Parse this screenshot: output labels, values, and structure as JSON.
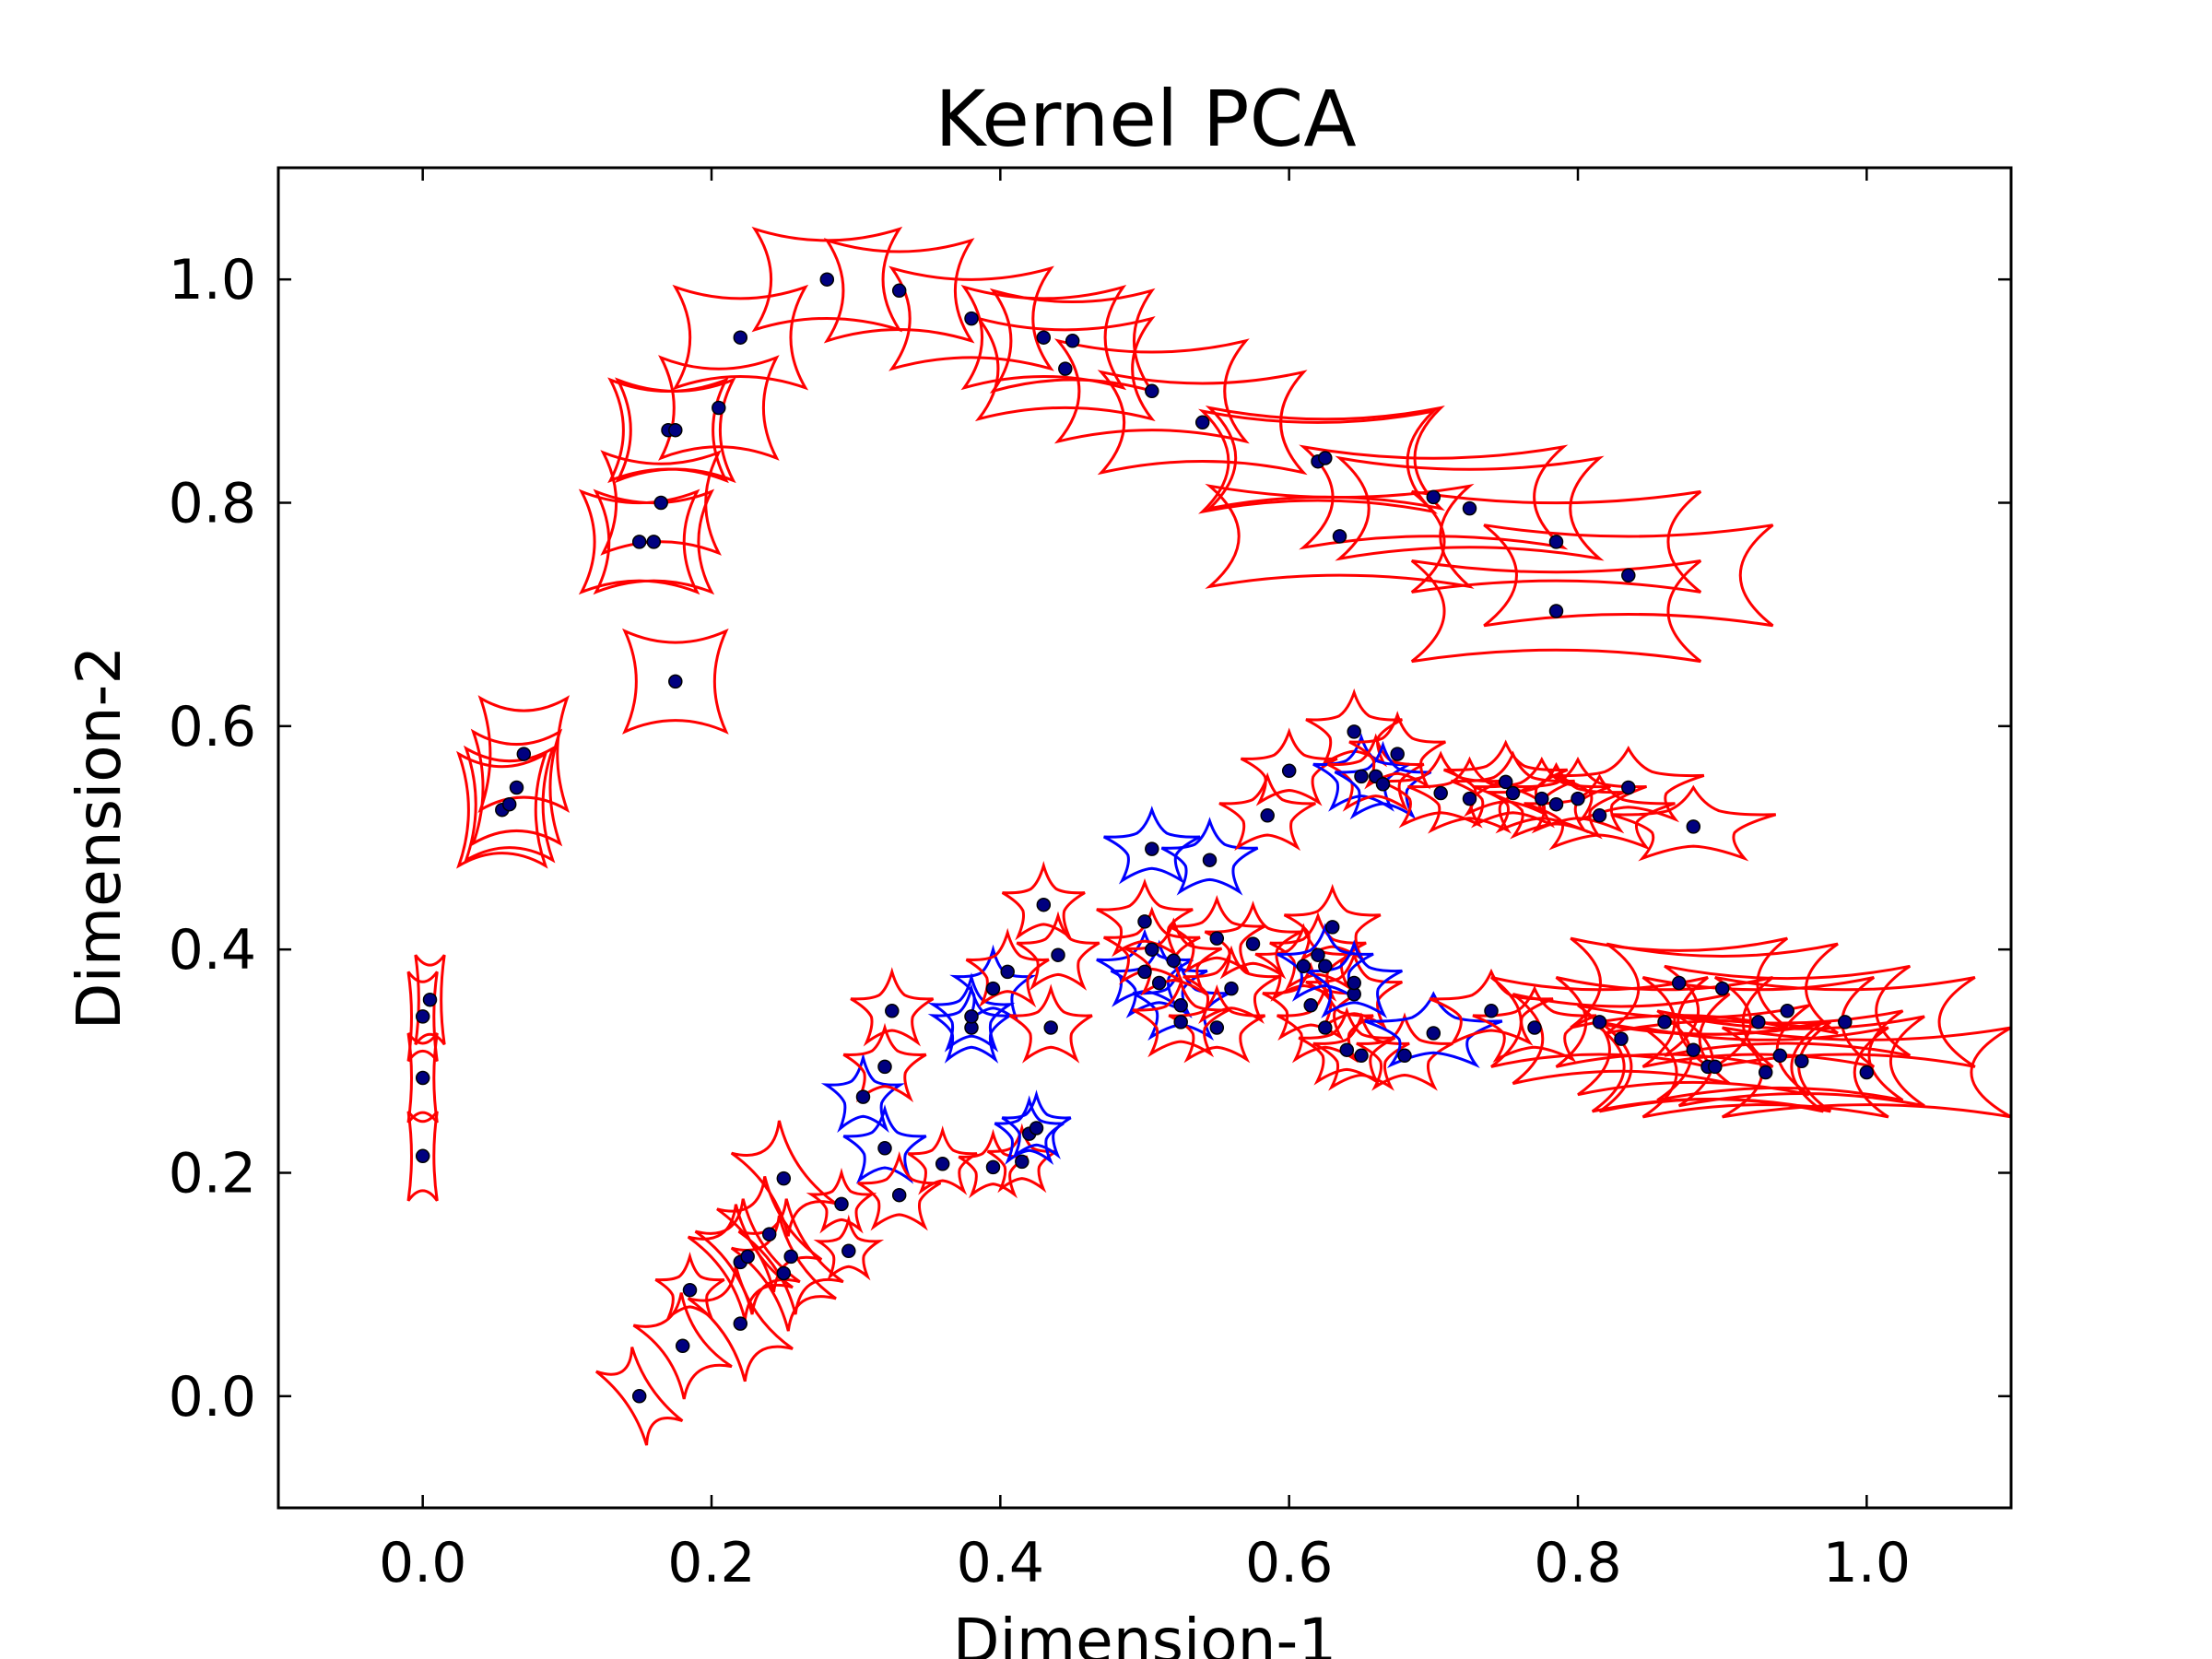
{
  "chart_data": {
    "type": "scatter",
    "title": "Kernel PCA",
    "xlabel": "Dimension-1",
    "ylabel": "Dimension-2",
    "xlim": [
      -0.1,
      1.1
    ],
    "ylim": [
      -0.1,
      1.1
    ],
    "xticks": [
      0.0,
      0.2,
      0.4,
      0.6,
      0.8,
      1.0
    ],
    "yticks": [
      0.0,
      0.2,
      0.4,
      0.6,
      0.8,
      1.0
    ],
    "xtick_labels": [
      "0.0",
      "0.2",
      "0.4",
      "0.6",
      "0.8",
      "1.0"
    ],
    "ytick_labels": [
      "0.0",
      "0.2",
      "0.4",
      "0.6",
      "0.8",
      "1.0"
    ],
    "grid": false,
    "legend": "none",
    "point_color": "#000080",
    "glyph_colors": {
      "red": "#ff0000",
      "blue": "#0000ff"
    },
    "points": [
      [
        0.0,
        0.215,
        "bar",
        0.01,
        0.04
      ],
      [
        0.0,
        0.285,
        "bar",
        0.01,
        0.04
      ],
      [
        0.0,
        0.34,
        "bar",
        0.01,
        0.04
      ],
      [
        0.005,
        0.355,
        "bar",
        0.01,
        0.04
      ],
      [
        0.055,
        0.525,
        "bar",
        0.03,
        0.05
      ],
      [
        0.06,
        0.53,
        "bar",
        0.03,
        0.05
      ],
      [
        0.065,
        0.545,
        "bar",
        0.03,
        0.05
      ],
      [
        0.07,
        0.575,
        "bar",
        0.03,
        0.05
      ],
      [
        0.175,
        0.64,
        "bar",
        0.035,
        0.045
      ],
      [
        0.15,
        0.765,
        "bar",
        0.04,
        0.045
      ],
      [
        0.16,
        0.765,
        "bar",
        0.04,
        0.045
      ],
      [
        0.165,
        0.8,
        "bar",
        0.04,
        0.045
      ],
      [
        0.17,
        0.865,
        "bar",
        0.04,
        0.045
      ],
      [
        0.175,
        0.865,
        "bar",
        0.04,
        0.045
      ],
      [
        0.205,
        0.885,
        "bar",
        0.04,
        0.045
      ],
      [
        0.22,
        0.948,
        "bar",
        0.045,
        0.045
      ],
      [
        0.28,
        1.0,
        "bar",
        0.05,
        0.045
      ],
      [
        0.33,
        0.99,
        "bar",
        0.05,
        0.045
      ],
      [
        0.38,
        0.965,
        "bar",
        0.055,
        0.045
      ],
      [
        0.43,
        0.948,
        "bar",
        0.055,
        0.045
      ],
      [
        0.45,
        0.945,
        "bar",
        0.055,
        0.045
      ],
      [
        0.445,
        0.92,
        "bar",
        0.06,
        0.045
      ],
      [
        0.505,
        0.9,
        "bar",
        0.065,
        0.045
      ],
      [
        0.54,
        0.872,
        "bar",
        0.07,
        0.045
      ],
      [
        0.62,
        0.837,
        "bar",
        0.08,
        0.045
      ],
      [
        0.625,
        0.84,
        "bar",
        0.08,
        0.045
      ],
      [
        0.635,
        0.77,
        "bar",
        0.09,
        0.045
      ],
      [
        0.7,
        0.805,
        "bar",
        0.09,
        0.045
      ],
      [
        0.725,
        0.795,
        "bar",
        0.09,
        0.045
      ],
      [
        0.785,
        0.765,
        "bar",
        0.1,
        0.045
      ],
      [
        0.785,
        0.703,
        "bar",
        0.1,
        0.045
      ],
      [
        0.835,
        0.735,
        "bar",
        0.1,
        0.045
      ],
      [
        0.15,
        0.0,
        "wedge",
        0.015,
        0.04
      ],
      [
        0.18,
        0.045,
        "wedge",
        0.02,
        0.04
      ],
      [
        0.185,
        0.095,
        "star",
        0.025,
        0.03
      ],
      [
        0.22,
        0.065,
        "wedge",
        0.02,
        0.045
      ],
      [
        0.22,
        0.12,
        "wedge",
        0.02,
        0.045
      ],
      [
        0.225,
        0.125,
        "wedge",
        0.02,
        0.045
      ],
      [
        0.24,
        0.145,
        "wedge",
        0.02,
        0.045
      ],
      [
        0.25,
        0.11,
        "wedge",
        0.02,
        0.045
      ],
      [
        0.255,
        0.125,
        "wedge",
        0.02,
        0.045
      ],
      [
        0.25,
        0.195,
        "wedge",
        0.02,
        0.045
      ],
      [
        0.29,
        0.172,
        "star",
        0.022,
        0.028
      ],
      [
        0.295,
        0.13,
        "star",
        0.022,
        0.028
      ],
      [
        0.305,
        0.268,
        "blue-star",
        0.027,
        0.035
      ],
      [
        0.32,
        0.222,
        "blue-star",
        0.03,
        0.035
      ],
      [
        0.32,
        0.295,
        "star",
        0.03,
        0.035
      ],
      [
        0.325,
        0.345,
        "star",
        0.03,
        0.035
      ],
      [
        0.33,
        0.18,
        "star",
        0.03,
        0.035
      ],
      [
        0.36,
        0.208,
        "star",
        0.025,
        0.03
      ],
      [
        0.395,
        0.205,
        "star",
        0.025,
        0.03
      ],
      [
        0.415,
        0.21,
        "star",
        0.025,
        0.03
      ],
      [
        0.42,
        0.235,
        "blue-star",
        0.025,
        0.03
      ],
      [
        0.425,
        0.24,
        "blue-star",
        0.025,
        0.03
      ],
      [
        0.38,
        0.33,
        "blue-star",
        0.028,
        0.035
      ],
      [
        0.38,
        0.34,
        "blue-star",
        0.028,
        0.035
      ],
      [
        0.395,
        0.365,
        "blue-star",
        0.028,
        0.035
      ],
      [
        0.405,
        0.38,
        "star",
        0.03,
        0.035
      ],
      [
        0.43,
        0.44,
        "star",
        0.03,
        0.035
      ],
      [
        0.44,
        0.395,
        "star",
        0.03,
        0.035
      ],
      [
        0.435,
        0.33,
        "star",
        0.03,
        0.035
      ],
      [
        0.505,
        0.49,
        "blue-star",
        0.035,
        0.035
      ],
      [
        0.545,
        0.48,
        "blue-star",
        0.035,
        0.035
      ],
      [
        0.5,
        0.38,
        "blue-star",
        0.035,
        0.035
      ],
      [
        0.51,
        0.37,
        "blue-star",
        0.035,
        0.035
      ],
      [
        0.525,
        0.35,
        "blue-star",
        0.035,
        0.035
      ],
      [
        0.5,
        0.425,
        "star",
        0.035,
        0.035
      ],
      [
        0.505,
        0.4,
        "star",
        0.035,
        0.035
      ],
      [
        0.52,
        0.39,
        "star",
        0.035,
        0.035
      ],
      [
        0.525,
        0.335,
        "star",
        0.035,
        0.035
      ],
      [
        0.55,
        0.33,
        "star",
        0.035,
        0.035
      ],
      [
        0.55,
        0.41,
        "star",
        0.035,
        0.035
      ],
      [
        0.56,
        0.365,
        "star",
        0.035,
        0.035
      ],
      [
        0.575,
        0.405,
        "star",
        0.035,
        0.035
      ],
      [
        0.585,
        0.52,
        "star",
        0.035,
        0.035
      ],
      [
        0.6,
        0.56,
        "star",
        0.035,
        0.035
      ],
      [
        0.61,
        0.385,
        "star",
        0.035,
        0.035
      ],
      [
        0.615,
        0.35,
        "star",
        0.035,
        0.035
      ],
      [
        0.62,
        0.395,
        "star",
        0.035,
        0.035
      ],
      [
        0.625,
        0.33,
        "star",
        0.035,
        0.035
      ],
      [
        0.63,
        0.42,
        "star",
        0.035,
        0.035
      ],
      [
        0.64,
        0.31,
        "star",
        0.035,
        0.035
      ],
      [
        0.645,
        0.36,
        "star",
        0.035,
        0.035
      ],
      [
        0.65,
        0.305,
        "star",
        0.035,
        0.035
      ],
      [
        0.645,
        0.595,
        "star",
        0.035,
        0.035
      ],
      [
        0.65,
        0.555,
        "blue-star",
        0.035,
        0.035
      ],
      [
        0.66,
        0.555,
        "star",
        0.035,
        0.035
      ],
      [
        0.665,
        0.548,
        "blue-star",
        0.035,
        0.035
      ],
      [
        0.675,
        0.575,
        "star",
        0.035,
        0.035
      ],
      [
        0.68,
        0.305,
        "star",
        0.035,
        0.035
      ],
      [
        0.645,
        0.37,
        "blue-star",
        0.035,
        0.035
      ],
      [
        0.625,
        0.385,
        "blue-star",
        0.035,
        0.035
      ],
      [
        0.7,
        0.325,
        "blue-star",
        0.05,
        0.035
      ],
      [
        0.705,
        0.54,
        "star",
        0.045,
        0.035
      ],
      [
        0.725,
        0.535,
        "star",
        0.045,
        0.035
      ],
      [
        0.74,
        0.345,
        "star",
        0.045,
        0.035
      ],
      [
        0.75,
        0.55,
        "star",
        0.045,
        0.035
      ],
      [
        0.755,
        0.54,
        "star",
        0.045,
        0.035
      ],
      [
        0.77,
        0.33,
        "star",
        0.045,
        0.035
      ],
      [
        0.775,
        0.535,
        "star",
        0.05,
        0.035
      ],
      [
        0.785,
        0.53,
        "star",
        0.05,
        0.035
      ],
      [
        0.8,
        0.535,
        "star",
        0.05,
        0.035
      ],
      [
        0.815,
        0.52,
        "star",
        0.055,
        0.035
      ],
      [
        0.835,
        0.545,
        "star",
        0.055,
        0.035
      ],
      [
        0.88,
        0.51,
        "star",
        0.06,
        0.035
      ],
      [
        0.815,
        0.335,
        "wide",
        0.075,
        0.04
      ],
      [
        0.83,
        0.32,
        "wide",
        0.075,
        0.04
      ],
      [
        0.86,
        0.335,
        "wide",
        0.075,
        0.04
      ],
      [
        0.87,
        0.37,
        "wide",
        0.075,
        0.04
      ],
      [
        0.88,
        0.31,
        "wide",
        0.08,
        0.04
      ],
      [
        0.89,
        0.295,
        "wide",
        0.08,
        0.04
      ],
      [
        0.895,
        0.295,
        "wide",
        0.08,
        0.04
      ],
      [
        0.9,
        0.365,
        "wide",
        0.08,
        0.04
      ],
      [
        0.925,
        0.335,
        "wide",
        0.08,
        0.04
      ],
      [
        0.93,
        0.29,
        "wide",
        0.085,
        0.04
      ],
      [
        0.94,
        0.305,
        "wide",
        0.085,
        0.04
      ],
      [
        0.945,
        0.345,
        "wide",
        0.085,
        0.04
      ],
      [
        0.955,
        0.3,
        "wide",
        0.085,
        0.04
      ],
      [
        0.985,
        0.335,
        "wide",
        0.09,
        0.04
      ],
      [
        1.0,
        0.29,
        "wide",
        0.1,
        0.04
      ]
    ]
  }
}
